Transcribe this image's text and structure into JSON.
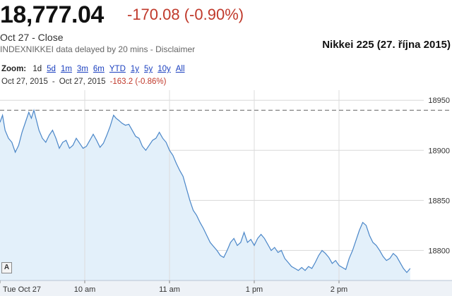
{
  "header": {
    "price": "18,777.04",
    "change": "-170.08 (-0.90%)",
    "close_line": "Oct 27 - Close",
    "delay_text": "INDEXNIKKEI data delayed by 20 mins - ",
    "disclaimer": "Disclaimer",
    "caption": "Nikkei 225 (27. října 2015)"
  },
  "zoom": {
    "label": "Zoom:",
    "options": [
      "1d",
      "5d",
      "1m",
      "3m",
      "6m",
      "YTD",
      "1y",
      "5y",
      "10y",
      "All"
    ],
    "active": "1d"
  },
  "range": {
    "from": "Oct 27, 2015",
    "sep": "-",
    "to": "Oct 27, 2015",
    "change": "-163.2 (-0.86%)"
  },
  "annotation_button": "A",
  "colors": {
    "line": "#4a86c8",
    "fill": "#e3f0fa",
    "down": "#c0392b",
    "link": "#1a3fbf"
  },
  "chart_data": {
    "type": "area",
    "xlabels": [
      "Tue Oct 27",
      "10 am",
      "11 am",
      "1 pm",
      "2 pm"
    ],
    "xlabel_positions_hours": [
      9,
      10,
      11,
      12,
      13
    ],
    "x_range_hours": [
      9,
      14
    ],
    "y_ticks": [
      18800,
      18850,
      18900,
      18950
    ],
    "ylim": [
      18770,
      18960
    ],
    "previous_close": 18940,
    "grid": true,
    "series": [
      {
        "values": [
          [
            9.0,
            18928
          ],
          [
            9.03,
            18935
          ],
          [
            9.06,
            18920
          ],
          [
            9.1,
            18912
          ],
          [
            9.14,
            18908
          ],
          [
            9.18,
            18898
          ],
          [
            9.22,
            18905
          ],
          [
            9.26,
            18918
          ],
          [
            9.3,
            18928
          ],
          [
            9.34,
            18938
          ],
          [
            9.37,
            18932
          ],
          [
            9.4,
            18940
          ],
          [
            9.43,
            18930
          ],
          [
            9.46,
            18920
          ],
          [
            9.5,
            18912
          ],
          [
            9.54,
            18908
          ],
          [
            9.58,
            18915
          ],
          [
            9.62,
            18920
          ],
          [
            9.66,
            18912
          ],
          [
            9.7,
            18902
          ],
          [
            9.74,
            18908
          ],
          [
            9.78,
            18910
          ],
          [
            9.82,
            18902
          ],
          [
            9.86,
            18905
          ],
          [
            9.9,
            18912
          ],
          [
            9.94,
            18907
          ],
          [
            9.98,
            18902
          ],
          [
            10.02,
            18904
          ],
          [
            10.06,
            18910
          ],
          [
            10.1,
            18916
          ],
          [
            10.14,
            18910
          ],
          [
            10.18,
            18903
          ],
          [
            10.22,
            18907
          ],
          [
            10.26,
            18915
          ],
          [
            10.3,
            18924
          ],
          [
            10.34,
            18935
          ],
          [
            10.37,
            18932
          ],
          [
            10.4,
            18930
          ],
          [
            10.44,
            18927
          ],
          [
            10.48,
            18925
          ],
          [
            10.52,
            18926
          ],
          [
            10.56,
            18920
          ],
          [
            10.6,
            18914
          ],
          [
            10.64,
            18912
          ],
          [
            10.68,
            18904
          ],
          [
            10.72,
            18900
          ],
          [
            10.76,
            18905
          ],
          [
            10.8,
            18910
          ],
          [
            10.84,
            18912
          ],
          [
            10.88,
            18918
          ],
          [
            10.92,
            18912
          ],
          [
            10.96,
            18908
          ],
          [
            11.0,
            18900
          ],
          [
            11.04,
            18895
          ],
          [
            11.08,
            18887
          ],
          [
            11.12,
            18880
          ],
          [
            11.16,
            18874
          ],
          [
            11.2,
            18862
          ],
          [
            11.24,
            18850
          ],
          [
            11.28,
            18840
          ],
          [
            11.32,
            18835
          ],
          [
            11.36,
            18828
          ],
          [
            11.4,
            18822
          ],
          [
            11.44,
            18815
          ],
          [
            11.48,
            18808
          ],
          [
            11.52,
            18804
          ],
          [
            11.56,
            18800
          ],
          [
            11.6,
            18795
          ],
          [
            11.64,
            18793
          ],
          [
            11.68,
            18800
          ],
          [
            11.72,
            18808
          ],
          [
            11.76,
            18812
          ],
          [
            11.8,
            18805
          ],
          [
            11.84,
            18808
          ],
          [
            11.88,
            18818
          ],
          [
            11.92,
            18808
          ],
          [
            11.96,
            18811
          ],
          [
            12.0,
            18805
          ],
          [
            12.04,
            18812
          ],
          [
            12.08,
            18816
          ],
          [
            12.12,
            18812
          ],
          [
            12.16,
            18806
          ],
          [
            12.2,
            18800
          ],
          [
            12.24,
            18803
          ],
          [
            12.28,
            18798
          ],
          [
            12.32,
            18800
          ],
          [
            12.36,
            18792
          ],
          [
            12.4,
            18788
          ],
          [
            12.44,
            18784
          ],
          [
            12.48,
            18782
          ],
          [
            12.52,
            18780
          ],
          [
            12.56,
            18783
          ],
          [
            12.6,
            18780
          ],
          [
            12.64,
            18784
          ],
          [
            12.68,
            18782
          ],
          [
            12.72,
            18788
          ],
          [
            12.76,
            18795
          ],
          [
            12.8,
            18800
          ],
          [
            12.84,
            18797
          ],
          [
            12.88,
            18793
          ],
          [
            12.92,
            18787
          ],
          [
            12.96,
            18790
          ],
          [
            13.0,
            18785
          ],
          [
            13.04,
            18783
          ],
          [
            13.08,
            18781
          ],
          [
            13.12,
            18792
          ],
          [
            13.16,
            18800
          ],
          [
            13.2,
            18810
          ],
          [
            13.24,
            18820
          ],
          [
            13.28,
            18828
          ],
          [
            13.32,
            18825
          ],
          [
            13.36,
            18815
          ],
          [
            13.4,
            18808
          ],
          [
            13.44,
            18805
          ],
          [
            13.48,
            18800
          ],
          [
            13.52,
            18794
          ],
          [
            13.56,
            18790
          ],
          [
            13.6,
            18792
          ],
          [
            13.64,
            18797
          ],
          [
            13.68,
            18794
          ],
          [
            13.72,
            18788
          ],
          [
            13.76,
            18782
          ],
          [
            13.8,
            18778
          ],
          [
            13.84,
            18782
          ]
        ]
      }
    ]
  }
}
